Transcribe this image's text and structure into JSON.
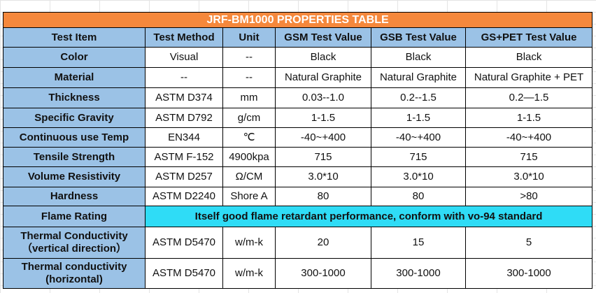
{
  "table": {
    "title": "JRF-BM1000  PROPERTIES  TABLE",
    "headers": [
      "Test Item",
      "Test Method",
      "Unit",
      "GSM  Test Value",
      "GSB Test Value",
      "GS+PET  Test Value"
    ],
    "rows": [
      [
        "Color",
        "Visual",
        "--",
        "Black",
        "Black",
        "Black"
      ],
      [
        "Material",
        "--",
        "--",
        "Natural Graphite",
        "Natural Graphite",
        "Natural Graphite + PET"
      ],
      [
        "Thickness",
        "ASTM D374",
        "mm",
        "0.03--1.0",
        "0.2--1.5",
        "0.2—1.5"
      ],
      [
        "Specific Gravity",
        "ASTM D792",
        "g/cm",
        "1-1.5",
        "1-1.5",
        "1-1.5"
      ],
      [
        "Continuous use Temp",
        "EN344",
        "℃",
        "-40~+400",
        "-40~+400",
        "-40~+400"
      ],
      [
        "Tensile Strength",
        "ASTM F-152",
        "4900kpa",
        "715",
        "715",
        "715"
      ],
      [
        "Volume Resistivity",
        "ASTM D257",
        "Ω/CM",
        "3.0*10",
        "3.0*10",
        "3.0*10"
      ],
      [
        "Hardness",
        "ASTM D2240",
        "Shore A",
        "80",
        "80",
        ">80"
      ],
      [
        "Flame Rating",
        "Itself good flame retardant performance, conform with vo-94 standard"
      ],
      [
        "Thermal Conductivity\n（vertical direction）",
        "ASTM D5470",
        "w/m-k",
        "20",
        "15",
        "5"
      ],
      [
        "Thermal conductivity\n(horizontal)",
        "ASTM D5470",
        "w/m-k",
        "300-1000",
        "300-1000",
        "300-1000"
      ]
    ]
  }
}
